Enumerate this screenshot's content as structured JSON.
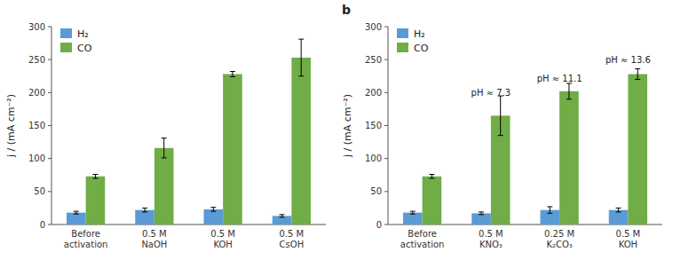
{
  "chart_data": [
    {
      "type": "bar",
      "categories": [
        "Before\nactivation",
        "0.5 M\nNaOH",
        "0.5 M\nKOH",
        "0.5 M\nCsOH"
      ],
      "series": [
        {
          "name": "H₂",
          "color": "#5b9bd5",
          "values": [
            18,
            22,
            23,
            13
          ],
          "errors": [
            2,
            3,
            3,
            2
          ]
        },
        {
          "name": "CO",
          "color": "#70ad47",
          "values": [
            73,
            116,
            228,
            253
          ],
          "errors": [
            3,
            15,
            4,
            28
          ]
        }
      ],
      "y_label": "j / (mA cm⁻²)",
      "ylim": [
        0,
        300
      ],
      "yticks": [
        0,
        50,
        100,
        150,
        200,
        250,
        300
      ],
      "legend": "upper left"
    },
    {
      "type": "bar",
      "title": "b",
      "categories": [
        "Before\nactivation",
        "0.5 M\nKNO₃",
        "0.25 M\nK₂CO₃",
        "0.5 M\nKOH"
      ],
      "series": [
        {
          "name": "H₂",
          "color": "#5b9bd5",
          "values": [
            18,
            17,
            22,
            22
          ],
          "errors": [
            2,
            2,
            5,
            3
          ]
        },
        {
          "name": "CO",
          "color": "#70ad47",
          "values": [
            73,
            165,
            202,
            228
          ],
          "errors": [
            3,
            30,
            12,
            8
          ]
        }
      ],
      "annotations": [
        {
          "text": "pH ≈ 7.3",
          "x": "0.5 M\nKNO₃",
          "y": 193
        },
        {
          "text": "pH ≈ 11.1",
          "x": "0.25 M\nK₂CO₃",
          "y": 214
        },
        {
          "text": "pH ≈ 13.6",
          "x": "0.5 M\nKOH",
          "y": 242
        }
      ],
      "y_label": "j / (mA cm⁻²)",
      "ylim": [
        0,
        300
      ],
      "yticks": [
        0,
        50,
        100,
        150,
        200,
        250,
        300
      ],
      "legend": "upper left"
    }
  ]
}
